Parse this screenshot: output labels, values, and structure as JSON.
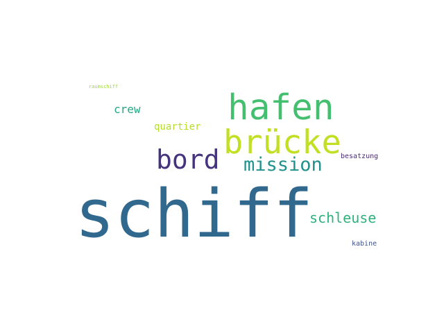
{
  "words": {
    "schiff": {
      "text": "schiff",
      "color": "#31688e"
    },
    "hafen": {
      "text": "hafen",
      "color": "#44bf70"
    },
    "bruecke": {
      "text": "brücke",
      "color": "#c2df23"
    },
    "bord": {
      "text": "bord",
      "color": "#46337e"
    },
    "mission": {
      "text": "mission",
      "color": "#21918c"
    },
    "schleuse": {
      "text": "schleuse",
      "color": "#2db27d"
    },
    "crew": {
      "text": "crew",
      "color": "#22a884"
    },
    "quartier": {
      "text": "quartier",
      "color": "#b5de2b"
    },
    "besatzung": {
      "text": "besatzung",
      "color": "#482878"
    },
    "kabine": {
      "text": "kabine",
      "color": "#3b528b"
    },
    "raumschiff": {
      "text": "raumschiff",
      "color": "#a0da39"
    }
  }
}
